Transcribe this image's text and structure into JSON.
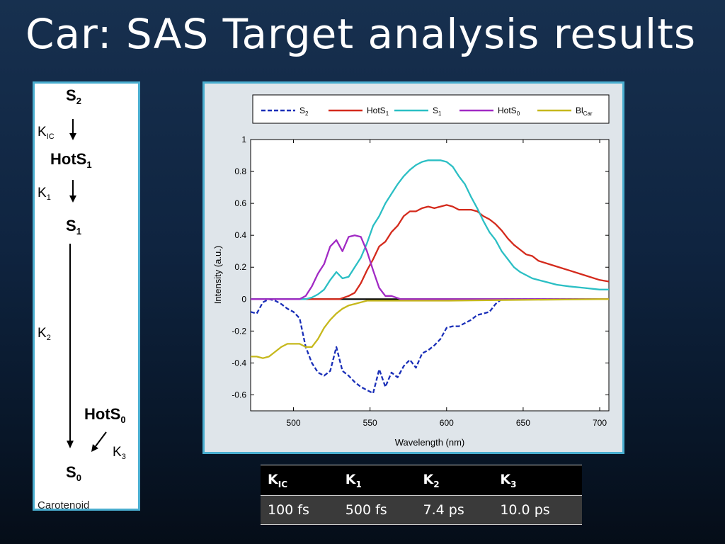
{
  "slide": {
    "title": "Car: SAS Target analysis results"
  },
  "scheme": {
    "states": [
      {
        "base": "S",
        "sub": "2"
      },
      {
        "base": "HotS",
        "sub": "1"
      },
      {
        "base": "S",
        "sub": "1"
      },
      {
        "base": "HotS",
        "sub": "0"
      },
      {
        "base": "S",
        "sub": "0"
      }
    ],
    "rates": [
      {
        "base": "K",
        "sub": "IC"
      },
      {
        "base": "K",
        "sub": "1"
      },
      {
        "base": "K",
        "sub": "2"
      },
      {
        "base": "K",
        "sub": "3"
      }
    ],
    "caption": "Carotenoid"
  },
  "chart_data": {
    "type": "line",
    "xlabel": "Wavelength (nm)",
    "ylabel": "Intensity (a.u.)",
    "xlim": [
      472,
      706
    ],
    "ylim": [
      -0.7,
      1.0
    ],
    "xticks": [
      500,
      550,
      600,
      650,
      700
    ],
    "yticks": [
      -0.6,
      -0.4,
      -0.2,
      0,
      0.2,
      0.4,
      0.6,
      0.8,
      1
    ],
    "ytick_labels": [
      "-0.6",
      "-0.4",
      "-0.2",
      "0",
      "0.2",
      "0.4",
      "0.6",
      "0.8",
      "1"
    ],
    "grid": false,
    "legend_position": "top",
    "series": [
      {
        "name": "S",
        "name_sub": "2",
        "color": "#1a2fb8",
        "dash": true,
        "x": [
          472,
          476,
          480,
          484,
          488,
          492,
          496,
          500,
          504,
          508,
          512,
          516,
          520,
          524,
          528,
          532,
          536,
          540,
          544,
          548,
          552,
          556,
          560,
          564,
          568,
          572,
          576,
          580,
          584,
          588,
          592,
          596,
          600,
          604,
          608,
          612,
          616,
          620,
          624,
          628,
          632,
          636,
          640,
          644,
          650,
          670,
          700,
          706
        ],
        "y": [
          -0.08,
          -0.09,
          -0.02,
          0.0,
          -0.01,
          -0.03,
          -0.06,
          -0.08,
          -0.12,
          -0.3,
          -0.4,
          -0.46,
          -0.48,
          -0.45,
          -0.3,
          -0.45,
          -0.48,
          -0.52,
          -0.55,
          -0.57,
          -0.59,
          -0.44,
          -0.55,
          -0.46,
          -0.49,
          -0.42,
          -0.38,
          -0.43,
          -0.34,
          -0.32,
          -0.29,
          -0.25,
          -0.18,
          -0.17,
          -0.17,
          -0.15,
          -0.13,
          -0.1,
          -0.09,
          -0.08,
          -0.03,
          0.0,
          0.0,
          0.0,
          0.0,
          0.0,
          0.0,
          0.0
        ]
      },
      {
        "name": "HotS",
        "name_sub": "1",
        "color": "#d42a1c",
        "dash": false,
        "x": [
          472,
          500,
          530,
          536,
          540,
          544,
          548,
          552,
          556,
          560,
          564,
          568,
          572,
          576,
          580,
          584,
          588,
          592,
          596,
          600,
          604,
          608,
          612,
          616,
          620,
          624,
          628,
          632,
          636,
          640,
          644,
          648,
          652,
          656,
          660,
          670,
          680,
          690,
          700,
          706
        ],
        "y": [
          0.0,
          0.0,
          0.0,
          0.02,
          0.04,
          0.1,
          0.18,
          0.25,
          0.33,
          0.36,
          0.42,
          0.46,
          0.52,
          0.55,
          0.55,
          0.57,
          0.58,
          0.57,
          0.58,
          0.59,
          0.58,
          0.56,
          0.56,
          0.56,
          0.55,
          0.52,
          0.5,
          0.47,
          0.43,
          0.38,
          0.34,
          0.31,
          0.28,
          0.27,
          0.24,
          0.21,
          0.18,
          0.15,
          0.12,
          0.11
        ]
      },
      {
        "name": "S",
        "name_sub": "1",
        "color": "#2bbfc4",
        "dash": false,
        "x": [
          472,
          500,
          508,
          512,
          516,
          520,
          524,
          528,
          532,
          536,
          540,
          544,
          548,
          552,
          556,
          560,
          564,
          568,
          572,
          576,
          580,
          584,
          588,
          592,
          596,
          600,
          604,
          608,
          612,
          616,
          620,
          624,
          628,
          632,
          636,
          640,
          644,
          648,
          656,
          664,
          672,
          680,
          690,
          700,
          706
        ],
        "y": [
          0.0,
          0.0,
          0.0,
          0.01,
          0.03,
          0.06,
          0.12,
          0.17,
          0.13,
          0.14,
          0.2,
          0.26,
          0.35,
          0.46,
          0.52,
          0.6,
          0.66,
          0.72,
          0.77,
          0.81,
          0.84,
          0.86,
          0.87,
          0.87,
          0.87,
          0.86,
          0.83,
          0.77,
          0.72,
          0.64,
          0.57,
          0.49,
          0.42,
          0.37,
          0.3,
          0.25,
          0.2,
          0.17,
          0.13,
          0.11,
          0.09,
          0.08,
          0.07,
          0.06,
          0.06
        ]
      },
      {
        "name": "HotS",
        "name_sub": "0",
        "color": "#a12ac4",
        "dash": false,
        "x": [
          472,
          500,
          504,
          508,
          512,
          516,
          520,
          524,
          528,
          532,
          536,
          540,
          544,
          548,
          552,
          556,
          560,
          564,
          570,
          600,
          650,
          700,
          706
        ],
        "y": [
          0.0,
          0.0,
          0.0,
          0.02,
          0.08,
          0.16,
          0.22,
          0.33,
          0.37,
          0.3,
          0.39,
          0.4,
          0.39,
          0.3,
          0.18,
          0.07,
          0.02,
          0.02,
          0.0,
          0.0,
          0.0,
          0.0,
          0.0
        ]
      },
      {
        "name": "Bl",
        "name_sub": "Car",
        "color": "#c6b81c",
        "dash": false,
        "x": [
          472,
          476,
          480,
          484,
          488,
          492,
          496,
          500,
          504,
          508,
          512,
          516,
          520,
          524,
          528,
          532,
          536,
          540,
          544,
          548,
          552,
          560,
          570,
          580,
          600,
          650,
          700,
          706
        ],
        "y": [
          -0.36,
          -0.36,
          -0.37,
          -0.36,
          -0.33,
          -0.3,
          -0.28,
          -0.28,
          -0.28,
          -0.3,
          -0.3,
          -0.25,
          -0.18,
          -0.13,
          -0.09,
          -0.06,
          -0.04,
          -0.03,
          -0.02,
          -0.01,
          -0.01,
          -0.01,
          -0.01,
          -0.01,
          -0.01,
          -0.005,
          0.0,
          0.0
        ]
      }
    ]
  },
  "rate_table": {
    "headers": [
      {
        "base": "K",
        "sub": "IC"
      },
      {
        "base": "K",
        "sub": "1"
      },
      {
        "base": "K",
        "sub": "2"
      },
      {
        "base": "K",
        "sub": "3"
      }
    ],
    "values": [
      "100 fs",
      "500 fs",
      "7.4 ps",
      "10.0 ps"
    ]
  },
  "colors": {
    "frame_border": "#4aaed0",
    "background_top": "#17304f",
    "background_bottom": "#050d18"
  }
}
